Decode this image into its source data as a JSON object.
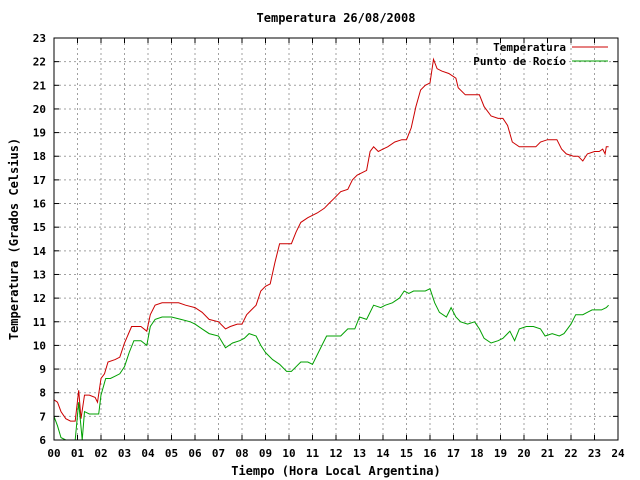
{
  "chart_data": {
    "type": "line",
    "title": "Temperatura 26/08/2008",
    "xlabel": "Tiempo (Hora Local Argentina)",
    "ylabel": "Temperatura (Grados Celsius)",
    "xlim": [
      0,
      24
    ],
    "ylim": [
      6,
      23
    ],
    "grid": true,
    "legend_position": "top-right",
    "x_tick_labels": [
      "00",
      "01",
      "02",
      "03",
      "04",
      "05",
      "06",
      "07",
      "08",
      "09",
      "10",
      "11",
      "12",
      "13",
      "14",
      "15",
      "16",
      "17",
      "18",
      "19",
      "20",
      "21",
      "22",
      "23",
      "24"
    ],
    "y_tick_labels": [
      "6",
      "7",
      "8",
      "9",
      "10",
      "11",
      "12",
      "13",
      "14",
      "15",
      "16",
      "17",
      "18",
      "19",
      "20",
      "21",
      "22",
      "23"
    ],
    "series": [
      {
        "name": "Temperatura",
        "color": "#cc0000",
        "points": [
          [
            0.0,
            7.7
          ],
          [
            0.15,
            7.6
          ],
          [
            0.3,
            7.2
          ],
          [
            0.5,
            6.9
          ],
          [
            0.7,
            6.8
          ],
          [
            0.9,
            6.8
          ],
          [
            1.05,
            8.1
          ],
          [
            1.15,
            6.9
          ],
          [
            1.3,
            7.9
          ],
          [
            1.5,
            7.9
          ],
          [
            1.75,
            7.8
          ],
          [
            1.85,
            7.6
          ],
          [
            2.0,
            8.6
          ],
          [
            2.15,
            8.8
          ],
          [
            2.3,
            9.3
          ],
          [
            2.6,
            9.4
          ],
          [
            2.8,
            9.5
          ],
          [
            3.0,
            10.1
          ],
          [
            3.3,
            10.8
          ],
          [
            3.7,
            10.8
          ],
          [
            3.95,
            10.6
          ],
          [
            4.1,
            11.3
          ],
          [
            4.3,
            11.7
          ],
          [
            4.6,
            11.8
          ],
          [
            5.0,
            11.8
          ],
          [
            5.3,
            11.8
          ],
          [
            5.6,
            11.7
          ],
          [
            6.0,
            11.6
          ],
          [
            6.3,
            11.4
          ],
          [
            6.6,
            11.1
          ],
          [
            7.0,
            11.0
          ],
          [
            7.3,
            10.7
          ],
          [
            7.5,
            10.8
          ],
          [
            7.8,
            10.9
          ],
          [
            8.0,
            10.9
          ],
          [
            8.2,
            11.3
          ],
          [
            8.4,
            11.5
          ],
          [
            8.6,
            11.7
          ],
          [
            8.8,
            12.3
          ],
          [
            9.0,
            12.5
          ],
          [
            9.2,
            12.6
          ],
          [
            9.4,
            13.5
          ],
          [
            9.6,
            14.3
          ],
          [
            9.9,
            14.3
          ],
          [
            10.1,
            14.3
          ],
          [
            10.3,
            14.8
          ],
          [
            10.5,
            15.2
          ],
          [
            10.8,
            15.4
          ],
          [
            11.2,
            15.6
          ],
          [
            11.5,
            15.8
          ],
          [
            11.7,
            16.0
          ],
          [
            11.9,
            16.2
          ],
          [
            12.2,
            16.5
          ],
          [
            12.5,
            16.6
          ],
          [
            12.7,
            17.0
          ],
          [
            12.9,
            17.2
          ],
          [
            13.1,
            17.3
          ],
          [
            13.3,
            17.4
          ],
          [
            13.45,
            18.2
          ],
          [
            13.6,
            18.4
          ],
          [
            13.8,
            18.2
          ],
          [
            14.0,
            18.3
          ],
          [
            14.2,
            18.4
          ],
          [
            14.5,
            18.6
          ],
          [
            14.8,
            18.7
          ],
          [
            15.0,
            18.7
          ],
          [
            15.2,
            19.2
          ],
          [
            15.4,
            20.1
          ],
          [
            15.6,
            20.8
          ],
          [
            15.8,
            21.0
          ],
          [
            16.0,
            21.1
          ],
          [
            16.15,
            22.1
          ],
          [
            16.3,
            21.7
          ],
          [
            16.5,
            21.6
          ],
          [
            16.8,
            21.5
          ],
          [
            17.1,
            21.3
          ],
          [
            17.2,
            20.9
          ],
          [
            17.5,
            20.6
          ],
          [
            17.9,
            20.6
          ],
          [
            18.1,
            20.6
          ],
          [
            18.3,
            20.1
          ],
          [
            18.6,
            19.7
          ],
          [
            18.9,
            19.6
          ],
          [
            19.1,
            19.6
          ],
          [
            19.3,
            19.3
          ],
          [
            19.5,
            18.6
          ],
          [
            19.8,
            18.4
          ],
          [
            20.2,
            18.4
          ],
          [
            20.5,
            18.4
          ],
          [
            20.7,
            18.6
          ],
          [
            21.0,
            18.7
          ],
          [
            21.4,
            18.7
          ],
          [
            21.6,
            18.3
          ],
          [
            21.8,
            18.1
          ],
          [
            22.1,
            18.0
          ],
          [
            22.3,
            18.0
          ],
          [
            22.5,
            17.8
          ],
          [
            22.7,
            18.1
          ],
          [
            23.0,
            18.2
          ],
          [
            23.2,
            18.2
          ],
          [
            23.35,
            18.3
          ],
          [
            23.45,
            18.1
          ],
          [
            23.5,
            18.4
          ],
          [
            23.6,
            18.4
          ]
        ]
      },
      {
        "name": "Punto de Rocío",
        "color": "#00a000",
        "points": [
          [
            0.0,
            7.0
          ],
          [
            0.15,
            6.6
          ],
          [
            0.3,
            6.1
          ],
          [
            0.5,
            6.0
          ],
          [
            0.7,
            6.0
          ],
          [
            0.9,
            6.0
          ],
          [
            1.05,
            7.6
          ],
          [
            1.2,
            6.0
          ],
          [
            1.3,
            7.2
          ],
          [
            1.5,
            7.1
          ],
          [
            1.7,
            7.1
          ],
          [
            1.9,
            7.1
          ],
          [
            2.0,
            7.9
          ],
          [
            2.2,
            8.6
          ],
          [
            2.4,
            8.6
          ],
          [
            2.6,
            8.7
          ],
          [
            2.8,
            8.8
          ],
          [
            3.0,
            9.1
          ],
          [
            3.2,
            9.7
          ],
          [
            3.4,
            10.2
          ],
          [
            3.7,
            10.2
          ],
          [
            3.95,
            10.0
          ],
          [
            4.1,
            10.8
          ],
          [
            4.3,
            11.1
          ],
          [
            4.6,
            11.2
          ],
          [
            5.0,
            11.2
          ],
          [
            5.4,
            11.1
          ],
          [
            5.8,
            11.0
          ],
          [
            6.0,
            10.9
          ],
          [
            6.3,
            10.7
          ],
          [
            6.6,
            10.5
          ],
          [
            7.0,
            10.4
          ],
          [
            7.3,
            9.9
          ],
          [
            7.6,
            10.1
          ],
          [
            7.9,
            10.2
          ],
          [
            8.1,
            10.3
          ],
          [
            8.3,
            10.5
          ],
          [
            8.6,
            10.4
          ],
          [
            8.8,
            10.0
          ],
          [
            9.0,
            9.7
          ],
          [
            9.3,
            9.4
          ],
          [
            9.6,
            9.2
          ],
          [
            9.9,
            8.9
          ],
          [
            10.1,
            8.9
          ],
          [
            10.3,
            9.1
          ],
          [
            10.5,
            9.3
          ],
          [
            10.8,
            9.3
          ],
          [
            11.0,
            9.2
          ],
          [
            11.2,
            9.6
          ],
          [
            11.4,
            10.0
          ],
          [
            11.6,
            10.4
          ],
          [
            11.9,
            10.4
          ],
          [
            12.2,
            10.4
          ],
          [
            12.5,
            10.7
          ],
          [
            12.8,
            10.7
          ],
          [
            13.0,
            11.2
          ],
          [
            13.3,
            11.1
          ],
          [
            13.6,
            11.7
          ],
          [
            13.9,
            11.6
          ],
          [
            14.1,
            11.7
          ],
          [
            14.4,
            11.8
          ],
          [
            14.7,
            12.0
          ],
          [
            14.9,
            12.3
          ],
          [
            15.1,
            12.2
          ],
          [
            15.3,
            12.3
          ],
          [
            15.6,
            12.3
          ],
          [
            15.8,
            12.3
          ],
          [
            16.0,
            12.4
          ],
          [
            16.2,
            11.8
          ],
          [
            16.4,
            11.4
          ],
          [
            16.7,
            11.2
          ],
          [
            16.9,
            11.6
          ],
          [
            17.1,
            11.2
          ],
          [
            17.3,
            11.0
          ],
          [
            17.6,
            10.9
          ],
          [
            17.9,
            11.0
          ],
          [
            18.1,
            10.7
          ],
          [
            18.3,
            10.3
          ],
          [
            18.6,
            10.1
          ],
          [
            18.9,
            10.2
          ],
          [
            19.1,
            10.3
          ],
          [
            19.4,
            10.6
          ],
          [
            19.6,
            10.2
          ],
          [
            19.8,
            10.7
          ],
          [
            20.1,
            10.8
          ],
          [
            20.4,
            10.8
          ],
          [
            20.7,
            10.7
          ],
          [
            20.9,
            10.4
          ],
          [
            21.2,
            10.5
          ],
          [
            21.5,
            10.4
          ],
          [
            21.7,
            10.5
          ],
          [
            22.0,
            10.9
          ],
          [
            22.2,
            11.3
          ],
          [
            22.5,
            11.3
          ],
          [
            22.7,
            11.4
          ],
          [
            22.9,
            11.5
          ],
          [
            23.1,
            11.5
          ],
          [
            23.3,
            11.5
          ],
          [
            23.5,
            11.6
          ],
          [
            23.6,
            11.7
          ]
        ]
      }
    ]
  }
}
